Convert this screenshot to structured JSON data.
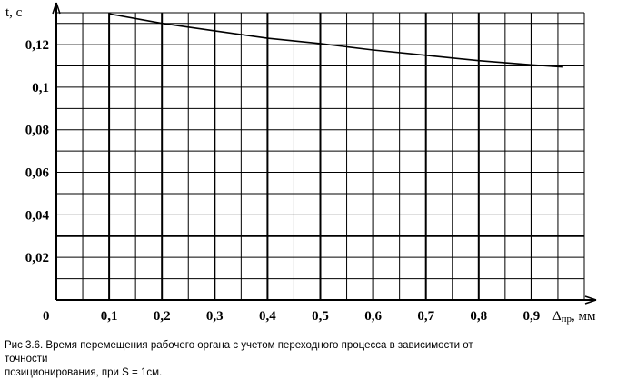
{
  "chart_data": {
    "type": "line",
    "ylabel": "t, c",
    "xlabel_symbol": "Δ",
    "xlabel_subscript": "пр",
    "xlabel_unit": ", мм",
    "origin_label": "0",
    "xlim": [
      0,
      1.0
    ],
    "ylim": [
      0,
      0.135
    ],
    "x_ticks": [
      0.1,
      0.2,
      0.3,
      0.4,
      0.5,
      0.6,
      0.7,
      0.8,
      0.9
    ],
    "x_tick_labels": [
      "0,1",
      "0,2",
      "0,3",
      "0,4",
      "0,5",
      "0,6",
      "0,7",
      "0,8",
      "0,9"
    ],
    "y_ticks": [
      0.02,
      0.04,
      0.06,
      0.08,
      0.1,
      0.12
    ],
    "y_tick_labels": [
      "0,02",
      "0,04",
      "0,06",
      "0,08",
      "0,1",
      "0,12"
    ],
    "grid": true,
    "series": [
      {
        "x": [
          0.1,
          0.2,
          0.3,
          0.4,
          0.5,
          0.6,
          0.7,
          0.8,
          0.9,
          0.96
        ],
        "values": [
          0.1345,
          0.13,
          0.1265,
          0.123,
          0.1205,
          0.1175,
          0.115,
          0.1125,
          0.1105,
          0.1095
        ]
      }
    ]
  },
  "caption": {
    "line1": "Рис 3.6.  Время перемещения рабочего органа с учетом переходного процесса в зависимости от точности",
    "line2": "позиционирования, при S = 1см."
  },
  "colors": {
    "line": "#000000",
    "grid": "#000000",
    "background": "#ffffff"
  }
}
